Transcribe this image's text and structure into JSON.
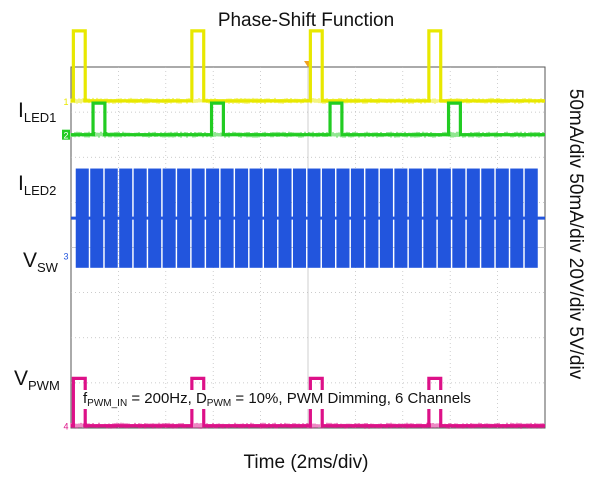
{
  "chart_data": {
    "type": "line",
    "title": "Phase-Shift Function",
    "xlabel": "Time (2ms/div)",
    "vertical_scale_text": "50mA/div 50mA/div 20V/div 5V/div",
    "annotation": {
      "f_main": "f",
      "f_sub": "PWM_IN",
      "f_rest": " = 200Hz, D",
      "d_sub": "PWM",
      "d_rest": " = 10%, PWM Dimming, 6 Channels"
    },
    "divisions": {
      "x": 10,
      "y": 8
    },
    "period_ms": 5,
    "duty": 0.1,
    "series": [
      {
        "label_main": "I",
        "label_sub": "LED1",
        "color": "#e8e800",
        "marker": "1",
        "type": "pulse",
        "phase_ms": 0.1,
        "high_div": 4.8,
        "low_div": 3.25
      },
      {
        "label_main": "I",
        "label_sub": "LED2",
        "color": "#22cc22",
        "marker": "2",
        "type": "pulse",
        "phase_ms": 0.93,
        "high_div": 3.2,
        "low_div": 2.5
      },
      {
        "label_main": "V",
        "label_sub": "SW",
        "color": "#2255dd",
        "marker": "3",
        "type": "switching",
        "base_div": 0.65,
        "amp_div": 1.1,
        "burst_ms": 0.55
      },
      {
        "label_main": "V",
        "label_sub": "PWM",
        "color": "#dd1188",
        "marker": "4",
        "type": "pulse",
        "phase_ms": 0.1,
        "high_div": -2.9,
        "low_div": -3.95
      }
    ]
  }
}
